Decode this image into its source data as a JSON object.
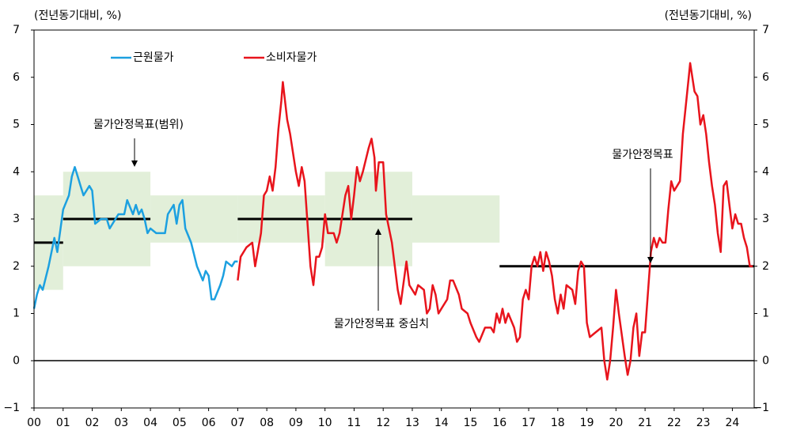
{
  "chart_data": {
    "type": "line",
    "y_label": "(전년동기대비, %)",
    "y2_label": "(전년동기대비, %)",
    "xlim": [
      2000,
      2024.75
    ],
    "xticks": [
      {
        "value": 2000,
        "label": "00"
      },
      {
        "value": 2001,
        "label": "01"
      },
      {
        "value": 2002,
        "label": "02"
      },
      {
        "value": 2003,
        "label": "03"
      },
      {
        "value": 2004,
        "label": "04"
      },
      {
        "value": 2005,
        "label": "05"
      },
      {
        "value": 2006,
        "label": "06"
      },
      {
        "value": 2007,
        "label": "07"
      },
      {
        "value": 2008,
        "label": "08"
      },
      {
        "value": 2009,
        "label": "09"
      },
      {
        "value": 2010,
        "label": "10"
      },
      {
        "value": 2011,
        "label": "11"
      },
      {
        "value": 2012,
        "label": "12"
      },
      {
        "value": 2013,
        "label": "13"
      },
      {
        "value": 2014,
        "label": "14"
      },
      {
        "value": 2015,
        "label": "15"
      },
      {
        "value": 2016,
        "label": "16"
      },
      {
        "value": 2017,
        "label": "17"
      },
      {
        "value": 2018,
        "label": "18"
      },
      {
        "value": 2019,
        "label": "19"
      },
      {
        "value": 2020,
        "label": "20"
      },
      {
        "value": 2021,
        "label": "21"
      },
      {
        "value": 2022,
        "label": "22"
      },
      {
        "value": 2023,
        "label": "23"
      },
      {
        "value": 2024,
        "label": "24"
      }
    ],
    "ylim": [
      -1,
      7
    ],
    "yticks": [
      {
        "value": -1,
        "label": "−1"
      },
      0,
      1,
      2,
      3,
      4,
      5,
      6,
      7
    ],
    "y2lim": [
      -1,
      7
    ],
    "y2ticks": [
      {
        "value": -1,
        "label": "−1"
      },
      0,
      1,
      2,
      3,
      4,
      5,
      6,
      7
    ],
    "series": [
      {
        "name": "근원물가",
        "color": "#1ca0e0",
        "x": [
          2000.0,
          2000.1,
          2000.2,
          2000.3,
          2000.5,
          2000.6,
          2000.7,
          2000.8,
          2001.0,
          2001.2,
          2001.3,
          2001.4,
          2001.5,
          2001.6,
          2001.7,
          2001.9,
          2002.0,
          2002.1,
          2002.3,
          2002.5,
          2002.6,
          2002.8,
          2002.9,
          2003.1,
          2003.2,
          2003.4,
          2003.5,
          2003.6,
          2003.7,
          2003.8,
          2003.9,
          2004.0,
          2004.2,
          2004.5,
          2004.6,
          2004.8,
          2004.9,
          2005.0,
          2005.1,
          2005.2,
          2005.4,
          2005.6,
          2005.8,
          2005.9,
          2006.0,
          2006.1,
          2006.2,
          2006.4,
          2006.5,
          2006.6,
          2006.8,
          2006.9,
          2007.0
        ],
        "values": [
          1.1,
          1.4,
          1.6,
          1.5,
          2.0,
          2.3,
          2.6,
          2.3,
          3.2,
          3.5,
          3.9,
          4.1,
          3.9,
          3.7,
          3.5,
          3.7,
          3.6,
          2.9,
          3.0,
          3.0,
          2.8,
          3.0,
          3.1,
          3.1,
          3.4,
          3.1,
          3.3,
          3.1,
          3.2,
          3.0,
          2.7,
          2.8,
          2.7,
          2.7,
          3.1,
          3.3,
          2.9,
          3.3,
          3.4,
          2.8,
          2.5,
          2.0,
          1.7,
          1.9,
          1.8,
          1.3,
          1.3,
          1.6,
          1.8,
          2.1,
          2.0,
          2.1,
          2.1
        ]
      },
      {
        "name": "소비자물가",
        "color": "#e8141c",
        "x": [
          2007.0,
          2007.1,
          2007.3,
          2007.5,
          2007.6,
          2007.8,
          2007.9,
          2008.0,
          2008.1,
          2008.2,
          2008.3,
          2008.4,
          2008.5,
          2008.55,
          2008.7,
          2008.8,
          2009.0,
          2009.1,
          2009.2,
          2009.3,
          2009.5,
          2009.6,
          2009.7,
          2009.8,
          2009.9,
          2010.0,
          2010.1,
          2010.3,
          2010.4,
          2010.5,
          2010.7,
          2010.8,
          2010.9,
          2011.0,
          2011.1,
          2011.2,
          2011.3,
          2011.5,
          2011.6,
          2011.7,
          2011.75,
          2011.85,
          2012.0,
          2012.1,
          2012.3,
          2012.5,
          2012.6,
          2012.8,
          2012.9,
          2013.0,
          2013.1,
          2013.2,
          2013.4,
          2013.5,
          2013.6,
          2013.7,
          2013.8,
          2013.9,
          2014.0,
          2014.2,
          2014.3,
          2014.4,
          2014.6,
          2014.7,
          2014.9,
          2015.0,
          2015.2,
          2015.3,
          2015.5,
          2015.7,
          2015.8,
          2015.9,
          2016.0,
          2016.1,
          2016.2,
          2016.3,
          2016.5,
          2016.6,
          2016.7,
          2016.8,
          2016.9,
          2017.0,
          2017.1,
          2017.2,
          2017.3,
          2017.4,
          2017.5,
          2017.6,
          2017.7,
          2017.8,
          2017.9,
          2018.0,
          2018.1,
          2018.2,
          2018.3,
          2018.5,
          2018.6,
          2018.7,
          2018.8,
          2018.9,
          2019.0,
          2019.1,
          2019.3,
          2019.5,
          2019.6,
          2019.7,
          2019.8,
          2019.9,
          2020.0,
          2020.1,
          2020.3,
          2020.4,
          2020.5,
          2020.6,
          2020.7,
          2020.8,
          2020.9,
          2021.0,
          2021.2,
          2021.3,
          2021.4,
          2021.5,
          2021.6,
          2021.7,
          2021.8,
          2021.9,
          2022.0,
          2022.1,
          2022.2,
          2022.3,
          2022.4,
          2022.5,
          2022.55,
          2022.7,
          2022.8,
          2022.9,
          2023.0,
          2023.1,
          2023.2,
          2023.3,
          2023.4,
          2023.5,
          2023.6,
          2023.7,
          2023.8,
          2023.9,
          2024.0,
          2024.1,
          2024.2,
          2024.3,
          2024.4,
          2024.5,
          2024.6,
          2024.7
        ],
        "values": [
          1.7,
          2.2,
          2.4,
          2.5,
          2.0,
          2.7,
          3.5,
          3.6,
          3.9,
          3.6,
          4.1,
          4.9,
          5.5,
          5.9,
          5.1,
          4.8,
          4.0,
          3.7,
          4.1,
          3.8,
          2.0,
          1.6,
          2.2,
          2.2,
          2.4,
          3.1,
          2.7,
          2.7,
          2.5,
          2.7,
          3.5,
          3.7,
          3.0,
          3.5,
          4.1,
          3.8,
          4.0,
          4.5,
          4.7,
          4.3,
          3.6,
          4.2,
          4.2,
          3.1,
          2.5,
          1.5,
          1.2,
          2.1,
          1.6,
          1.5,
          1.4,
          1.6,
          1.5,
          1.0,
          1.1,
          1.6,
          1.4,
          1.0,
          1.1,
          1.3,
          1.7,
          1.7,
          1.4,
          1.1,
          1.0,
          0.8,
          0.5,
          0.4,
          0.7,
          0.7,
          0.6,
          1.0,
          0.8,
          1.1,
          0.8,
          1.0,
          0.7,
          0.4,
          0.5,
          1.3,
          1.5,
          1.3,
          2.0,
          2.2,
          2.0,
          2.3,
          1.9,
          2.3,
          2.1,
          1.8,
          1.3,
          1.0,
          1.4,
          1.1,
          1.6,
          1.5,
          1.2,
          1.9,
          2.1,
          2.0,
          0.8,
          0.5,
          0.6,
          0.7,
          0.0,
          -0.4,
          0.0,
          0.7,
          1.5,
          1.0,
          0.1,
          -0.3,
          0.0,
          0.7,
          1.0,
          0.1,
          0.6,
          0.6,
          2.3,
          2.6,
          2.4,
          2.6,
          2.5,
          2.5,
          3.2,
          3.8,
          3.6,
          3.7,
          3.8,
          4.8,
          5.4,
          6.0,
          6.3,
          5.7,
          5.6,
          5.0,
          5.2,
          4.8,
          4.2,
          3.7,
          3.3,
          2.7,
          2.3,
          3.7,
          3.8,
          3.3,
          2.8,
          3.1,
          2.9,
          2.9,
          2.6,
          2.4,
          2.0,
          2.0
        ]
      }
    ],
    "target_bands": [
      {
        "x_start": 2000,
        "x_end": 2001,
        "low": 1.5,
        "high": 3.5
      },
      {
        "x_start": 2001,
        "x_end": 2004,
        "low": 2,
        "high": 4
      },
      {
        "x_start": 2004,
        "x_end": 2007,
        "low": 2.5,
        "high": 3.5
      },
      {
        "x_start": 2007,
        "x_end": 2010,
        "low": 2.5,
        "high": 3.5
      },
      {
        "x_start": 2010,
        "x_end": 2013,
        "low": 2,
        "high": 4
      },
      {
        "x_start": 2013,
        "x_end": 2016,
        "low": 2.5,
        "high": 3.5
      }
    ],
    "band_color": "#e2efd9",
    "target_lines": [
      {
        "x_start": 2000,
        "x_end": 2001,
        "value": 2.5
      },
      {
        "x_start": 2001,
        "x_end": 2004,
        "value": 3
      },
      {
        "x_start": 2007,
        "x_end": 2013,
        "value": 3
      },
      {
        "x_start": 2016,
        "x_end": 2024.75,
        "value": 2
      }
    ],
    "annotations": [
      "물가안정목표(범위)",
      "물가안정목표 중심치",
      "물가안정목표"
    ]
  }
}
